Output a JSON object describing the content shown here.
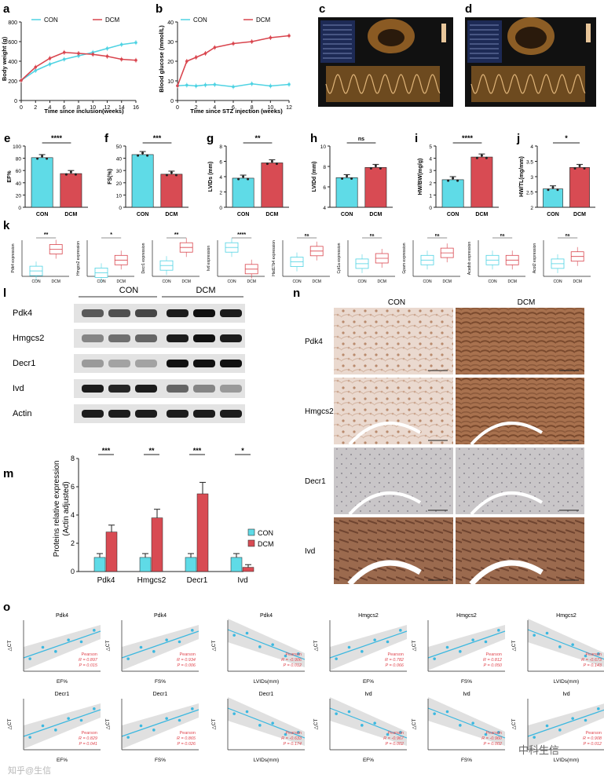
{
  "colors": {
    "con": "#4fd3e3",
    "dcm": "#d9454e",
    "conFill": "#5fdbe7",
    "dcmFill": "#d84b53",
    "fit": "#3bb8e0",
    "stat": "#e0454e"
  },
  "panel_a": {
    "letter": "a",
    "legend": [
      "CON",
      "DCM"
    ],
    "xlabel": "Time since inclusion(weeks)",
    "ylabel": "Body weight  (g)"
  },
  "panel_b": {
    "letter": "b",
    "legend": [
      "CON",
      "DCM"
    ],
    "xlabel": "Time since STZ injection  (weeks)",
    "ylabel": "Blood glucose  (mmol/L)"
  },
  "panel_c": {
    "letter": "c"
  },
  "panel_d": {
    "letter": "d"
  },
  "bars": [
    {
      "letter": "e",
      "ylabel": "EF%",
      "sig": "****"
    },
    {
      "letter": "f",
      "ylabel": "FS(%)",
      "sig": "***"
    },
    {
      "letter": "g",
      "ylabel": "LVIDs  (mm)",
      "sig": "**"
    },
    {
      "letter": "h",
      "ylabel": "LVIDd  (mm)",
      "sig": "ns"
    },
    {
      "letter": "i",
      "ylabel": "HW/BW(mg/g)",
      "sig": "****"
    },
    {
      "letter": "j",
      "ylabel": "HW/TL(mg/mm)",
      "sig": "*"
    }
  ],
  "bar_xlabels": [
    "CON",
    "DCM"
  ],
  "panel_k": {
    "letter": "k",
    "box_xlabels": [
      "CON",
      "DCM"
    ],
    "boxes": [
      {
        "ylabel": "Pdk4 expression",
        "sig": "**"
      },
      {
        "ylabel": "Hmgcs2 expression",
        "sig": "*"
      },
      {
        "ylabel": "Decr1 expression",
        "sig": "**"
      },
      {
        "ylabel": "Ivd expression",
        "sig": "****"
      },
      {
        "ylabel": "Hsd17b4 expression",
        "sig": "ns"
      },
      {
        "ylabel": "Cpt1a expression",
        "sig": "ns"
      },
      {
        "ylabel": "Gpam expression",
        "sig": "ns"
      },
      {
        "ylabel": "Acadsb expression",
        "sig": "ns"
      },
      {
        "ylabel": "Acot2 expression",
        "sig": "ns"
      }
    ]
  },
  "panel_l": {
    "letter": "l",
    "groups": [
      "CON",
      "DCM"
    ],
    "rows": [
      "Pdk4",
      "Hmgcs2",
      "Decr1",
      "Ivd",
      "Actin"
    ]
  },
  "panel_m": {
    "letter": "m",
    "ylabel": "Proteins relative expression",
    "ylabel2": "(Actin adjusted)",
    "legend": [
      "CON",
      "DCM"
    ]
  },
  "panel_n": {
    "letter": "n",
    "cols": [
      "CON",
      "DCM"
    ],
    "rows": [
      "Pdk4",
      "Hmgcs2",
      "Decr1",
      "Ivd"
    ]
  },
  "panel_o": {
    "letter": "o",
    "ylabel": "△CT",
    "method": "Pearson",
    "plots": [
      {
        "title": "Pdk4",
        "xlabel": "EF%",
        "r": "R = 0.897",
        "p": "P = 0.015"
      },
      {
        "title": "Pdk4",
        "xlabel": "FS%",
        "r": "R = 0.934",
        "p": "P = 0.006"
      },
      {
        "title": "Pdk4",
        "xlabel": "LVIDs(mm)",
        "r": "R = -0.906",
        "p": "P = 0.012"
      },
      {
        "title": "Hmgcs2",
        "xlabel": "EF%",
        "r": "R = 0.782",
        "p": "P = 0.066"
      },
      {
        "title": "Hmgcs2",
        "xlabel": "FS%",
        "r": "R = 0.812",
        "p": "P = 0.050"
      },
      {
        "title": "Hmgcs2",
        "xlabel": "LVIDs(mm)",
        "r": "R = -0.673",
        "p": "P = 0.143"
      },
      {
        "title": "Decr1",
        "xlabel": "EF%",
        "r": "R = 0.829",
        "p": "P = 0.041"
      },
      {
        "title": "Decr1",
        "xlabel": "FS%",
        "r": "R = 0.865",
        "p": "P = 0.026"
      },
      {
        "title": "Decr1",
        "xlabel": "LVIDs(mm)",
        "r": "R = -0.633",
        "p": "P = 0.174"
      },
      {
        "title": "Ivd",
        "xlabel": "EF%",
        "r": "R = -0.967",
        "p": "P = 0.002"
      },
      {
        "title": "Ivd",
        "xlabel": "FS%",
        "r": "R = -0.960",
        "p": "P = 0.002"
      },
      {
        "title": "Ivd",
        "xlabel": "LVIDs(mm)",
        "r": "R = 0.908",
        "p": "P = 0.012"
      }
    ]
  },
  "watermark": {
    "left": "知乎@生信",
    "right": "中科生信"
  },
  "chart_data": [
    {
      "type": "line",
      "x": [
        0,
        2,
        4,
        6,
        8,
        10,
        12,
        14,
        16
      ],
      "xlim": [
        0,
        16
      ],
      "ylim": [
        0,
        800
      ],
      "xticks": [
        0,
        2,
        4,
        6,
        8,
        10,
        12,
        14,
        16
      ],
      "yticks": [
        0,
        200,
        400,
        600,
        800
      ],
      "xlabel": "Time since inclusion(weeks)",
      "ylabel": "Body weight  (g)",
      "series": [
        {
          "name": "CON",
          "values": [
            205,
            305,
            370,
            420,
            455,
            490,
            530,
            570,
            590
          ]
        },
        {
          "name": "DCM",
          "values": [
            205,
            340,
            430,
            490,
            480,
            470,
            450,
            420,
            410
          ]
        }
      ]
    },
    {
      "type": "line",
      "x": [
        0,
        1,
        2,
        3,
        4,
        6,
        8,
        10,
        12
      ],
      "xlim": [
        0,
        12
      ],
      "ylim": [
        0,
        40
      ],
      "xticks": [
        0,
        2,
        4,
        6,
        8,
        10,
        12
      ],
      "yticks": [
        0,
        10,
        20,
        30,
        40
      ],
      "xlabel": "Time since STZ injection  (weeks)",
      "ylabel": "Blood glucose  (mmol/L)",
      "series": [
        {
          "name": "CON",
          "values": [
            7.5,
            7.8,
            7.4,
            7.9,
            8.1,
            7.0,
            8.5,
            7.4,
            8.2
          ]
        },
        {
          "name": "DCM",
          "values": [
            7.5,
            20,
            22,
            24,
            27,
            29,
            30,
            32,
            33
          ]
        }
      ]
    },
    {
      "type": "bar",
      "title": "EF%",
      "categories": [
        "CON",
        "DCM"
      ],
      "values": [
        81,
        55
      ],
      "ylim": [
        0,
        100
      ],
      "yticks": [
        0,
        20,
        40,
        60,
        80,
        100
      ]
    },
    {
      "type": "bar",
      "title": "FS(%)",
      "categories": [
        "CON",
        "DCM"
      ],
      "values": [
        43,
        27
      ],
      "ylim": [
        0,
        50
      ],
      "yticks": [
        0,
        10,
        20,
        30,
        40,
        50
      ]
    },
    {
      "type": "bar",
      "title": "LVIDs (mm)",
      "categories": [
        "CON",
        "DCM"
      ],
      "values": [
        3.8,
        5.8
      ],
      "ylim": [
        0,
        8
      ],
      "yticks": [
        0,
        2,
        4,
        6,
        8
      ]
    },
    {
      "type": "bar",
      "title": "LVIDd (mm)",
      "categories": [
        "CON",
        "DCM"
      ],
      "values": [
        6.9,
        7.9
      ],
      "ylim": [
        4,
        10
      ],
      "yticks": [
        4,
        6,
        8,
        10
      ]
    },
    {
      "type": "bar",
      "title": "HW/BW(mg/g)",
      "categories": [
        "CON",
        "DCM"
      ],
      "values": [
        2.25,
        4.1
      ],
      "ylim": [
        0,
        5
      ],
      "yticks": [
        0,
        1,
        2,
        3,
        4,
        5
      ]
    },
    {
      "type": "bar",
      "title": "HW/TL(mg/mm)",
      "categories": [
        "CON",
        "DCM"
      ],
      "values": [
        2.6,
        3.3
      ],
      "ylim": [
        2.0,
        4.0
      ],
      "yticks": [
        2.0,
        2.5,
        3.0,
        3.5,
        4.0
      ]
    },
    {
      "type": "bar",
      "title": "Proteins relative expression",
      "categories": [
        "Pdk4",
        "Hmgcs2",
        "Decr1",
        "Ivd"
      ],
      "ylim": [
        0,
        8
      ],
      "yticks": [
        0,
        2,
        4,
        6,
        8
      ],
      "series": [
        {
          "name": "CON",
          "values": [
            1.0,
            1.0,
            1.0,
            1.0
          ]
        },
        {
          "name": "DCM",
          "values": [
            2.8,
            3.8,
            5.5,
            0.3
          ]
        }
      ],
      "sig": [
        "***",
        "**",
        "***",
        "*"
      ]
    }
  ]
}
